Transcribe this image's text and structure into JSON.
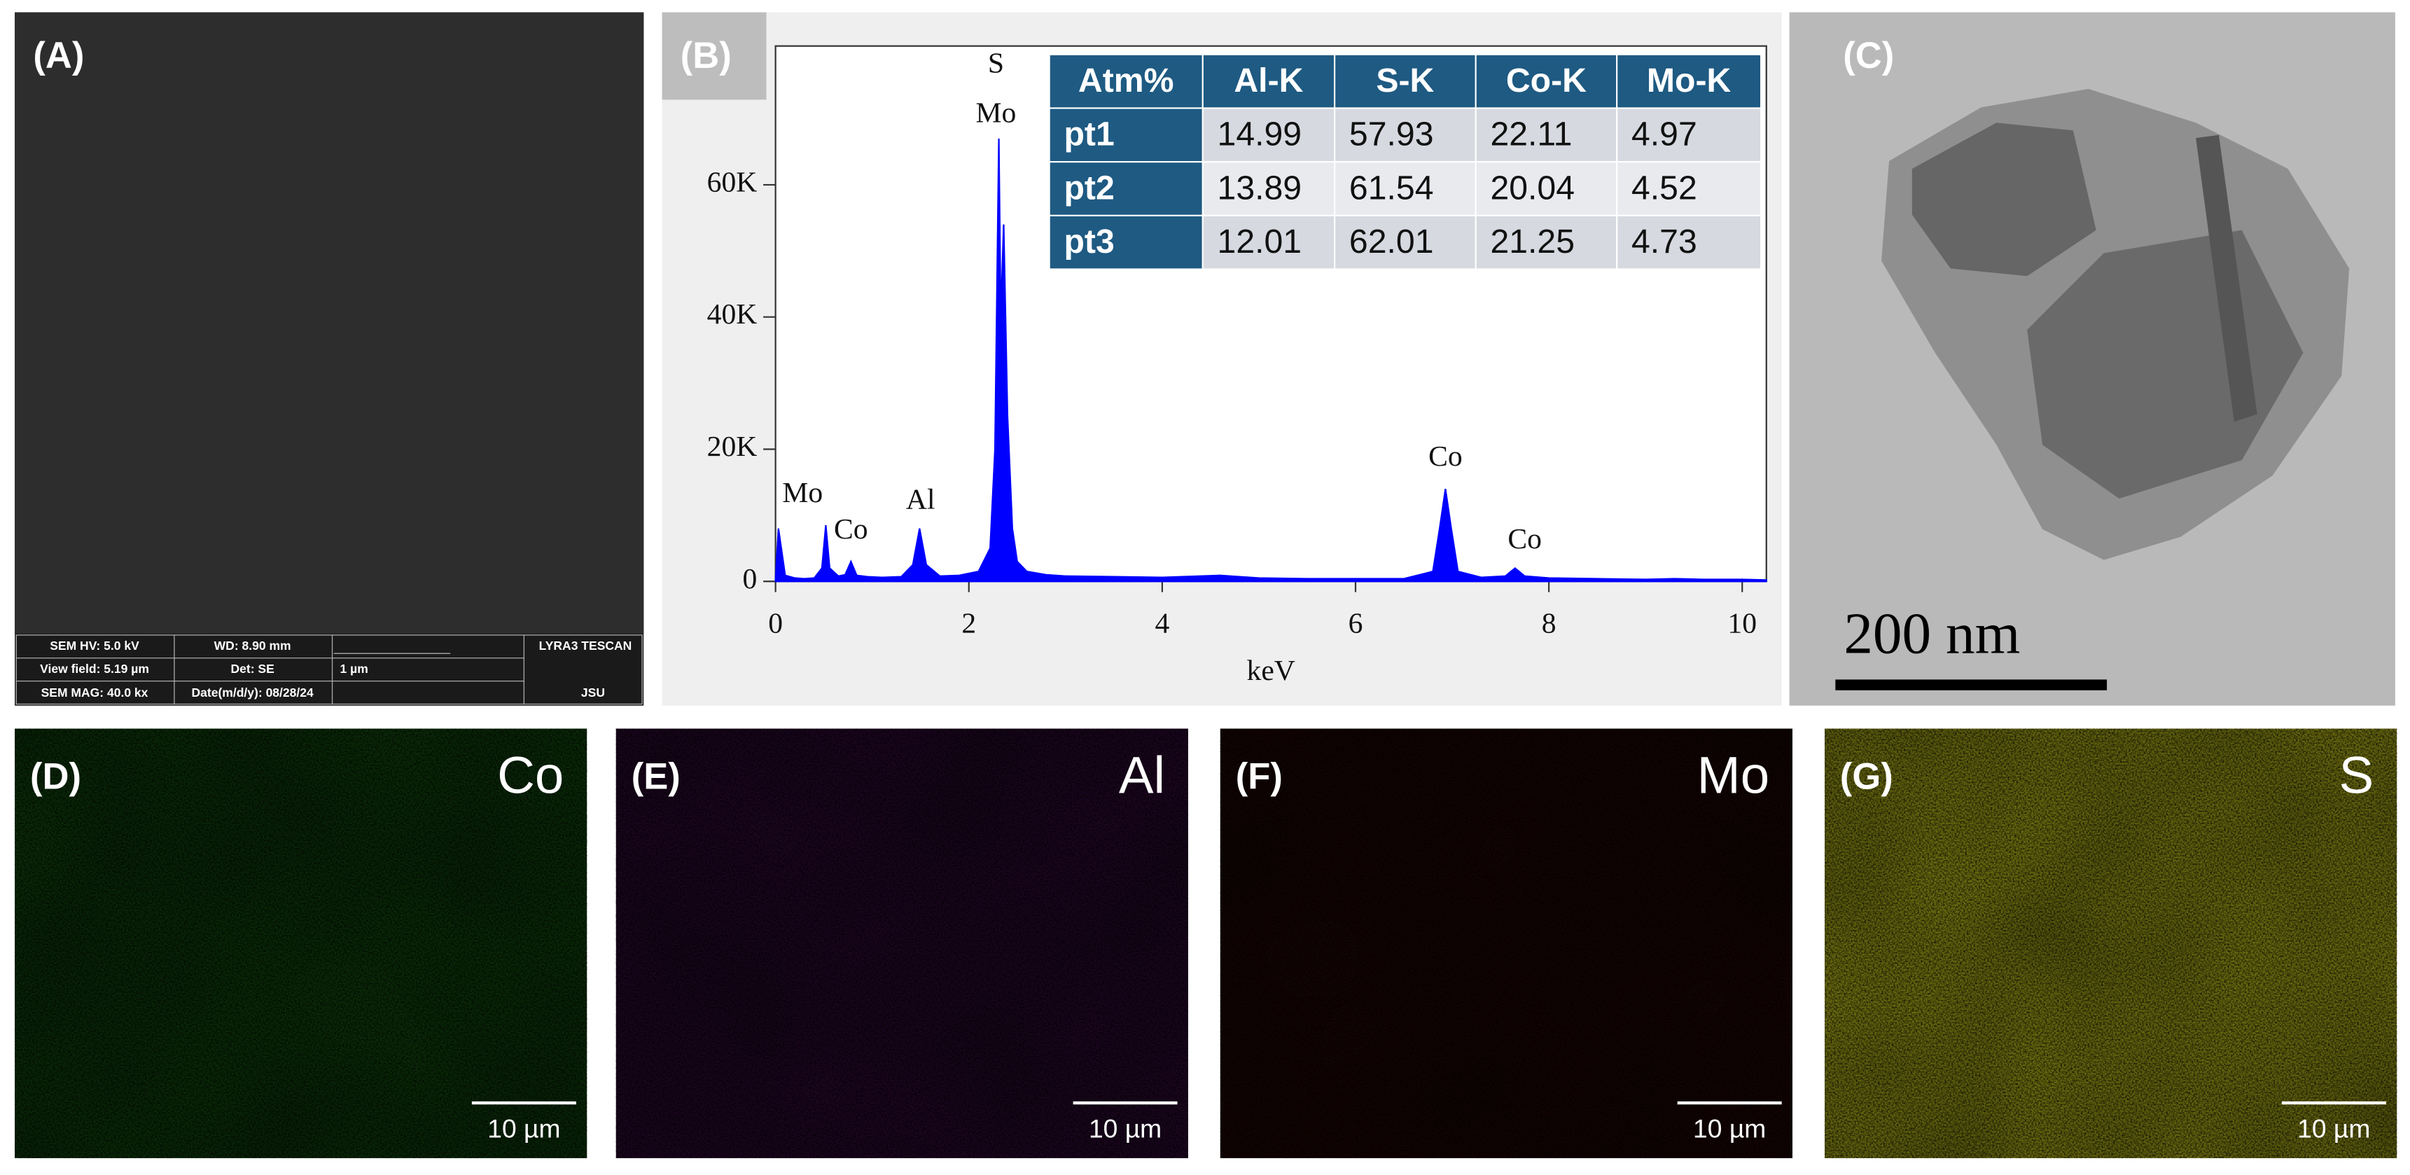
{
  "panels": {
    "A": {
      "label": "(A)"
    },
    "B": {
      "label": "(B)"
    },
    "C": {
      "label": "(C)",
      "scale_bar": "200 nm"
    },
    "D": {
      "label": "(D)",
      "element": "Co",
      "scale_bar": "10 µm"
    },
    "E": {
      "label": "(E)",
      "element": "Al",
      "scale_bar": "10 µm"
    },
    "F": {
      "label": "(F)",
      "element": "Mo",
      "scale_bar": "10 µm"
    },
    "G": {
      "label": "(G)",
      "element": "S",
      "scale_bar": "10 µm"
    }
  },
  "sem_info": {
    "hv": "SEM HV: 5.0 kV",
    "wd": "WD: 8.90 mm",
    "brand": "LYRA3 TESCAN",
    "view_field": "View field: 5.19 µm",
    "det": "Det: SE",
    "scale": "1 µm",
    "mag": "SEM MAG: 40.0 kx",
    "date": "Date(m/d/y): 08/28/24",
    "lab": "JSU"
  },
  "table": {
    "header": [
      "Atm%",
      "Al-K",
      "S-K",
      "Co-K",
      "Mo-K"
    ],
    "rows": [
      [
        "pt1",
        14.99,
        57.93,
        22.11,
        4.97
      ],
      [
        "pt2",
        13.89,
        61.54,
        20.04,
        4.52
      ],
      [
        "pt3",
        12.01,
        62.01,
        21.25,
        4.73
      ]
    ]
  },
  "chart_data": {
    "type": "area",
    "x_label": "keV",
    "color": "#0000ff",
    "x": [
      0,
      0.03,
      0.1,
      0.2,
      0.3,
      0.4,
      0.48,
      0.52,
      0.56,
      0.65,
      0.72,
      0.78,
      0.84,
      0.95,
      1.1,
      1.3,
      1.42,
      1.49,
      1.56,
      1.7,
      1.9,
      2.1,
      2.22,
      2.27,
      2.31,
      2.33,
      2.36,
      2.4,
      2.45,
      2.5,
      2.6,
      2.8,
      3.0,
      3.5,
      4.0,
      4.6,
      5.0,
      5.5,
      6.0,
      6.5,
      6.8,
      6.87,
      6.93,
      6.99,
      7.06,
      7.3,
      7.55,
      7.65,
      7.75,
      8.0,
      8.5,
      9.0,
      9.3,
      9.6,
      10.0,
      10.25
    ],
    "values": [
      300,
      8000,
      900,
      500,
      400,
      500,
      2000,
      8500,
      2000,
      800,
      1000,
      3000,
      900,
      700,
      600,
      700,
      2500,
      8000,
      2500,
      800,
      900,
      1500,
      5000,
      20000,
      67000,
      40000,
      54000,
      25000,
      8000,
      3000,
      1500,
      1000,
      800,
      700,
      600,
      900,
      500,
      400,
      400,
      400,
      1500,
      8000,
      14000,
      8000,
      1500,
      600,
      800,
      2000,
      800,
      500,
      400,
      300,
      400,
      300,
      300,
      200
    ],
    "xlim": [
      0,
      10.25
    ],
    "ylim": [
      0,
      81000
    ],
    "xticks": [
      0,
      2,
      4,
      6,
      8,
      10
    ],
    "yticks": [
      0,
      {
        "value": 20000,
        "label": "20K"
      },
      {
        "value": 40000,
        "label": "40K"
      },
      {
        "value": 60000,
        "label": "60K"
      }
    ],
    "annotations": [
      {
        "text": "Mo",
        "x": 0.28,
        "y": 12000
      },
      {
        "text": "Co",
        "x": 0.78,
        "y": 6500
      },
      {
        "text": "Al",
        "x": 1.5,
        "y": 11000
      },
      {
        "text": "S",
        "x": 2.28,
        "y": 77000
      },
      {
        "text": "Mo",
        "x": 2.28,
        "y": 69500
      },
      {
        "text": "Co",
        "x": 6.93,
        "y": 17500
      },
      {
        "text": "Co",
        "x": 7.75,
        "y": 5000
      }
    ]
  }
}
